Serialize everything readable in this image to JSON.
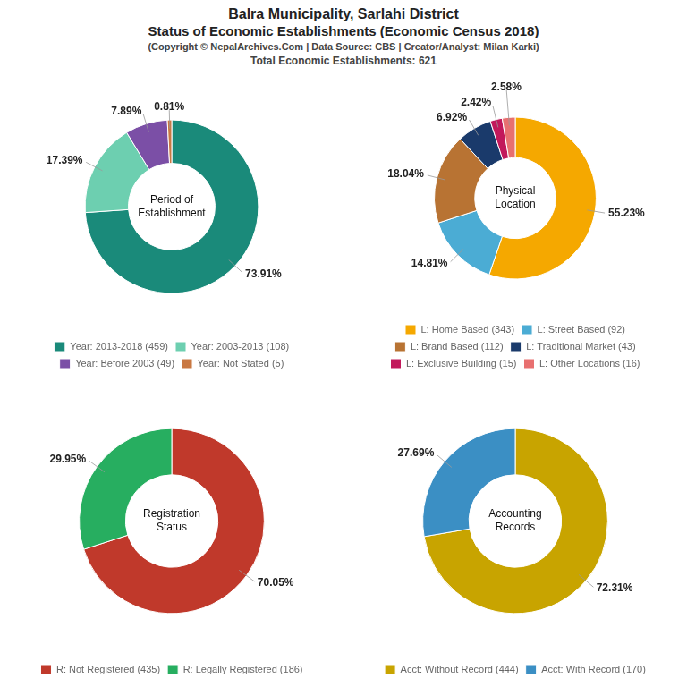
{
  "title": [
    "Balra Municipality, Sarlahi District",
    "Status of Economic Establishments (Economic Census 2018)"
  ],
  "subtitle": [
    "(Copyright © NepalArchives.Com | Data Source: CBS | Creator/Analyst: Milan Karki)",
    "Total Economic Establishments: 621"
  ],
  "chart_data": [
    {
      "type": "doughnut",
      "title": "Period of\nEstablishment",
      "categories": [
        "Year: 2013-2018 (459)",
        "Year: 2003-2013 (108)",
        "Year: Before 2003 (49)",
        "Year: Not Stated (5)"
      ],
      "values": [
        73.91,
        17.39,
        7.89,
        0.81
      ],
      "value_labels": [
        "73.91%",
        "17.39%",
        "7.89%",
        "0.81%"
      ],
      "colors": [
        "#1a8a7a",
        "#6dcfb0",
        "#7b4fa6",
        "#c97842"
      ],
      "data_labels": true,
      "legend": "bottom"
    },
    {
      "type": "doughnut",
      "title": "Physical\nLocation",
      "categories": [
        "L: Home Based (343)",
        "L: Street Based (92)",
        "L: Brand Based (112)",
        "L: Traditional Market (43)",
        "L: Exclusive Building (15)",
        "L: Other Locations (16)"
      ],
      "values": [
        55.23,
        14.81,
        18.04,
        6.92,
        2.42,
        2.58
      ],
      "value_labels": [
        "55.23%",
        "14.81%",
        "18.04%",
        "6.92%",
        "2.42%",
        "2.58%"
      ],
      "colors": [
        "#f5a800",
        "#4bacd4",
        "#b87333",
        "#1a3a6b",
        "#c2185b",
        "#e87070"
      ],
      "data_labels": true,
      "legend": "bottom"
    },
    {
      "type": "doughnut",
      "title": "Registration\nStatus",
      "categories": [
        "R: Not Registered (435)",
        "R: Legally Registered (186)"
      ],
      "values": [
        70.05,
        29.95
      ],
      "value_labels": [
        "70.05%",
        "29.95%"
      ],
      "colors": [
        "#c0392b",
        "#27ae60"
      ],
      "data_labels": true,
      "legend": "bottom"
    },
    {
      "type": "doughnut",
      "title": "Accounting\nRecords",
      "categories": [
        "Acct: Without Record (444)",
        "Acct: With Record (170)"
      ],
      "values": [
        72.31,
        27.69
      ],
      "value_labels": [
        "72.31%",
        "27.69%"
      ],
      "colors": [
        "#c8a400",
        "#3b8fc4"
      ],
      "data_labels": true,
      "legend": "bottom"
    }
  ]
}
